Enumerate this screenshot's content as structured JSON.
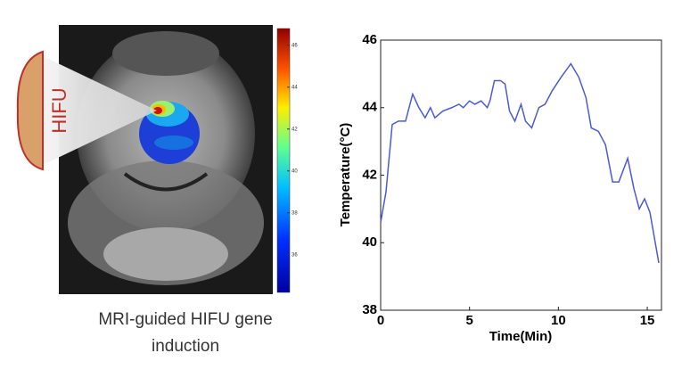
{
  "figure": {
    "hifu_label": "HIFU",
    "caption": [
      "MRI-guided HIFU gene",
      "induction"
    ],
    "colorbar": {
      "lim": [
        34.2,
        46.8
      ],
      "ticks": [
        46,
        44,
        42,
        40,
        38,
        36
      ]
    }
  },
  "chart_data": {
    "type": "line",
    "xlabel": "Time(Min)",
    "ylabel": "Temperature(°C)",
    "xlim": [
      0,
      15.8
    ],
    "ylim": [
      38,
      46
    ],
    "xticks": [
      0,
      5,
      10,
      15
    ],
    "yticks": [
      38,
      40,
      42,
      44,
      46
    ],
    "series": [
      {
        "color": "#4a5bd6",
        "x": [
          0,
          0.3,
          0.65,
          1.0,
          1.4,
          1.8,
          2.15,
          2.5,
          2.8,
          3.05,
          3.5,
          4.0,
          4.4,
          4.65,
          5.0,
          5.3,
          5.65,
          6.0,
          6.15,
          6.4,
          6.75,
          7.0,
          7.25,
          7.55,
          7.9,
          8.15,
          8.5,
          8.9,
          9.25,
          9.65,
          10.15,
          10.7,
          11.15,
          11.55,
          11.85,
          12.25,
          12.65,
          13.05,
          13.4,
          13.9,
          14.25,
          14.55,
          14.85,
          15.15,
          15.65
        ],
        "values": [
          40.6,
          41.5,
          43.5,
          43.6,
          43.6,
          44.4,
          44.0,
          43.7,
          44.0,
          43.7,
          43.9,
          44.0,
          44.1,
          44.0,
          44.2,
          44.1,
          44.2,
          44.0,
          44.2,
          44.8,
          44.8,
          44.7,
          43.9,
          43.6,
          44.1,
          43.6,
          43.4,
          44.0,
          44.1,
          44.5,
          44.9,
          45.3,
          44.9,
          44.3,
          43.4,
          43.3,
          42.9,
          41.8,
          41.8,
          42.5,
          41.6,
          41.0,
          41.3,
          40.9,
          39.4
        ]
      }
    ]
  }
}
